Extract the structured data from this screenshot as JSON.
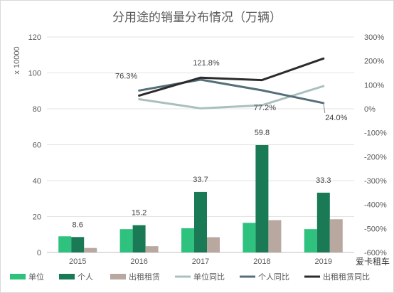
{
  "chart_data": {
    "type": "bar",
    "title": "分用途的销量分布情况（万辆）",
    "ylabel": "x 10000",
    "ylim": [
      0,
      120
    ],
    "yticks": [
      0,
      20,
      40,
      60,
      80,
      100,
      120
    ],
    "y2lim": [
      -600,
      300
    ],
    "y2ticks": [
      "-600%",
      "-500%",
      "-400%",
      "-300%",
      "-200%",
      "-100%",
      "0%",
      "100%",
      "200%",
      "300%"
    ],
    "y2tick_values": [
      -600,
      -500,
      -400,
      -300,
      -200,
      -100,
      0,
      100,
      200,
      300
    ],
    "categories": [
      "2015",
      "2016",
      "2017",
      "2018",
      "2019"
    ],
    "series": [
      {
        "name": "单位",
        "kind": "bar",
        "axis": "left",
        "color": "#2ec27e",
        "values": [
          9.0,
          13.0,
          13.5,
          16.5,
          13.0
        ]
      },
      {
        "name": "个人",
        "kind": "bar",
        "axis": "left",
        "color": "#1a7a55",
        "values": [
          8.6,
          15.2,
          33.7,
          59.8,
          33.3
        ]
      },
      {
        "name": "出租租赁",
        "kind": "bar",
        "axis": "left",
        "color": "#b8a8a0",
        "values": [
          2.5,
          3.5,
          8.5,
          18.0,
          18.5
        ]
      },
      {
        "name": "单位同比",
        "kind": "line",
        "axis": "right",
        "color": "#a9c1be",
        "values": [
          null,
          40,
          2,
          15,
          95
        ]
      },
      {
        "name": "个人同比",
        "kind": "line",
        "axis": "right",
        "color": "#546e7a",
        "values": [
          null,
          76.3,
          121.8,
          77.2,
          24.0
        ]
      },
      {
        "name": "出租租赁同比",
        "kind": "line",
        "axis": "right",
        "color": "#2b2b2b",
        "values": [
          null,
          55,
          130,
          120,
          210
        ]
      }
    ],
    "bar_labels": [
      "8.6",
      "15.2",
      "33.7",
      "59.8",
      "33.3"
    ],
    "line_labels": [
      "76.3%",
      "121.8%",
      "77.2%",
      "24.0%"
    ],
    "grid": true,
    "legend_position": "bottom",
    "legend": [
      "单位",
      "个人",
      "出租租赁",
      "单位同比",
      "个人同比",
      "出租租赁同比"
    ]
  },
  "watermark": "爱卡租车"
}
